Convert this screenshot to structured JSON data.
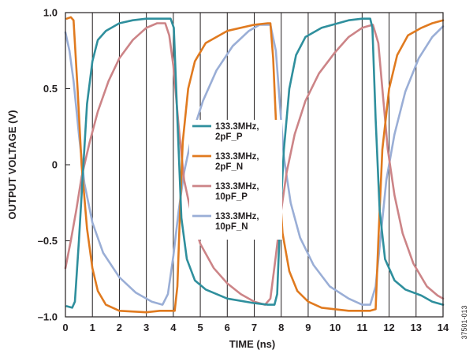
{
  "chart_data": {
    "type": "line",
    "xlabel": "TIME (ns)",
    "ylabel": "OUTPUT VOLTAGE (V)",
    "xlim": [
      0,
      14
    ],
    "ylim": [
      -1.0,
      1.0
    ],
    "x_ticks": [
      "0",
      "1",
      "2",
      "3",
      "4",
      "5",
      "6",
      "7",
      "8",
      "9",
      "10",
      "11",
      "12",
      "13",
      "14"
    ],
    "y_ticks": [
      {
        "value": 1.0,
        "label": "1.0"
      },
      {
        "value": 0.5,
        "label": "0.5"
      },
      {
        "value": 0,
        "label": "0"
      },
      {
        "value": -0.5,
        "label": "–0.5"
      },
      {
        "value": -1.0,
        "label": "–1.0"
      }
    ],
    "grid": "vertical",
    "legend_position": "center",
    "series": [
      {
        "name": "133.3MHz,\n2pF_P",
        "color": "#2f8f9d",
        "points": [
          [
            0.05,
            -0.93
          ],
          [
            0.25,
            -0.94
          ],
          [
            0.35,
            -0.9
          ],
          [
            0.5,
            -0.5
          ],
          [
            0.65,
            -0.05
          ],
          [
            0.8,
            0.4
          ],
          [
            1.0,
            0.68
          ],
          [
            1.2,
            0.82
          ],
          [
            1.5,
            0.88
          ],
          [
            2.0,
            0.93
          ],
          [
            2.5,
            0.95
          ],
          [
            3.0,
            0.96
          ],
          [
            3.5,
            0.96
          ],
          [
            3.9,
            0.96
          ],
          [
            4.02,
            0.9
          ],
          [
            4.15,
            0.3
          ],
          [
            4.3,
            -0.35
          ],
          [
            4.5,
            -0.62
          ],
          [
            4.8,
            -0.76
          ],
          [
            5.2,
            -0.82
          ],
          [
            6.0,
            -0.88
          ],
          [
            7.0,
            -0.91
          ],
          [
            7.5,
            -0.92
          ],
          [
            7.75,
            -0.92
          ],
          [
            7.85,
            -0.85
          ],
          [
            7.95,
            -0.4
          ],
          [
            8.1,
            0.1
          ],
          [
            8.3,
            0.5
          ],
          [
            8.55,
            0.72
          ],
          [
            8.9,
            0.84
          ],
          [
            9.5,
            0.9
          ],
          [
            10.5,
            0.95
          ],
          [
            11.0,
            0.96
          ],
          [
            11.3,
            0.96
          ],
          [
            11.38,
            0.9
          ],
          [
            11.5,
            0.3
          ],
          [
            11.65,
            -0.3
          ],
          [
            11.85,
            -0.62
          ],
          [
            12.2,
            -0.76
          ],
          [
            12.6,
            -0.82
          ],
          [
            13.2,
            -0.86
          ],
          [
            13.6,
            -0.9
          ],
          [
            14.0,
            -0.92
          ]
        ]
      },
      {
        "name": "133.3MHz,\n2pF_N",
        "color": "#e07a1f",
        "points": [
          [
            0.05,
            0.96
          ],
          [
            0.2,
            0.97
          ],
          [
            0.3,
            0.95
          ],
          [
            0.45,
            0.5
          ],
          [
            0.6,
            0.0
          ],
          [
            0.8,
            -0.42
          ],
          [
            1.0,
            -0.68
          ],
          [
            1.2,
            -0.83
          ],
          [
            1.5,
            -0.92
          ],
          [
            2.0,
            -0.96
          ],
          [
            3.0,
            -0.97
          ],
          [
            3.5,
            -0.96
          ],
          [
            4.05,
            -0.96
          ],
          [
            4.15,
            -0.8
          ],
          [
            4.25,
            -0.3
          ],
          [
            4.35,
            0.15
          ],
          [
            4.55,
            0.5
          ],
          [
            4.8,
            0.68
          ],
          [
            5.2,
            0.8
          ],
          [
            6.0,
            0.88
          ],
          [
            7.0,
            0.92
          ],
          [
            7.5,
            0.93
          ],
          [
            7.6,
            0.93
          ],
          [
            7.7,
            0.7
          ],
          [
            7.85,
            0.1
          ],
          [
            8.05,
            -0.45
          ],
          [
            8.3,
            -0.7
          ],
          [
            8.6,
            -0.83
          ],
          [
            9.0,
            -0.9
          ],
          [
            9.5,
            -0.94
          ],
          [
            10.5,
            -0.96
          ],
          [
            11.3,
            -0.96
          ],
          [
            11.5,
            -0.95
          ],
          [
            11.6,
            -0.5
          ],
          [
            11.75,
            0.1
          ],
          [
            12.0,
            0.5
          ],
          [
            12.3,
            0.72
          ],
          [
            12.7,
            0.85
          ],
          [
            13.2,
            0.9
          ],
          [
            13.6,
            0.93
          ],
          [
            14.0,
            0.95
          ]
        ]
      },
      {
        "name": "133.3MHz,\n10pF_P",
        "color": "#cc8487",
        "points": [
          [
            0.0,
            -0.68
          ],
          [
            0.2,
            -0.5
          ],
          [
            0.4,
            -0.3
          ],
          [
            0.6,
            -0.08
          ],
          [
            0.9,
            0.15
          ],
          [
            1.2,
            0.35
          ],
          [
            1.6,
            0.55
          ],
          [
            2.0,
            0.7
          ],
          [
            2.5,
            0.82
          ],
          [
            3.0,
            0.9
          ],
          [
            3.4,
            0.93
          ],
          [
            3.7,
            0.93
          ],
          [
            3.85,
            0.85
          ],
          [
            4.0,
            0.65
          ],
          [
            4.2,
            0.25
          ],
          [
            4.4,
            -0.1
          ],
          [
            4.7,
            -0.35
          ],
          [
            5.0,
            -0.52
          ],
          [
            5.5,
            -0.68
          ],
          [
            6.0,
            -0.78
          ],
          [
            6.5,
            -0.85
          ],
          [
            7.0,
            -0.9
          ],
          [
            7.4,
            -0.92
          ],
          [
            7.6,
            -0.88
          ],
          [
            7.8,
            -0.6
          ],
          [
            8.0,
            -0.3
          ],
          [
            8.2,
            -0.05
          ],
          [
            8.5,
            0.2
          ],
          [
            8.9,
            0.42
          ],
          [
            9.4,
            0.6
          ],
          [
            10.0,
            0.74
          ],
          [
            10.5,
            0.84
          ],
          [
            11.0,
            0.9
          ],
          [
            11.4,
            0.92
          ],
          [
            11.6,
            0.8
          ],
          [
            11.75,
            0.5
          ],
          [
            11.95,
            0.1
          ],
          [
            12.2,
            -0.2
          ],
          [
            12.5,
            -0.45
          ],
          [
            12.9,
            -0.65
          ],
          [
            13.4,
            -0.8
          ],
          [
            13.8,
            -0.86
          ],
          [
            14.0,
            -0.88
          ]
        ]
      },
      {
        "name": "133.3MHz,\n10pF_N",
        "color": "#9aaed6",
        "points": [
          [
            0.0,
            0.87
          ],
          [
            0.15,
            0.75
          ],
          [
            0.3,
            0.55
          ],
          [
            0.5,
            0.2
          ],
          [
            0.7,
            -0.12
          ],
          [
            1.0,
            -0.38
          ],
          [
            1.4,
            -0.58
          ],
          [
            2.0,
            -0.74
          ],
          [
            2.6,
            -0.84
          ],
          [
            3.2,
            -0.9
          ],
          [
            3.6,
            -0.92
          ],
          [
            3.8,
            -0.85
          ],
          [
            4.0,
            -0.6
          ],
          [
            4.2,
            -0.3
          ],
          [
            4.4,
            -0.05
          ],
          [
            4.7,
            0.2
          ],
          [
            5.1,
            0.42
          ],
          [
            5.6,
            0.62
          ],
          [
            6.2,
            0.78
          ],
          [
            6.8,
            0.88
          ],
          [
            7.2,
            0.92
          ],
          [
            7.6,
            0.92
          ],
          [
            7.8,
            0.75
          ],
          [
            7.95,
            0.4
          ],
          [
            8.1,
            0.05
          ],
          [
            8.35,
            -0.25
          ],
          [
            8.7,
            -0.48
          ],
          [
            9.2,
            -0.66
          ],
          [
            9.8,
            -0.8
          ],
          [
            10.5,
            -0.88
          ],
          [
            11.0,
            -0.92
          ],
          [
            11.3,
            -0.92
          ],
          [
            11.5,
            -0.8
          ],
          [
            11.7,
            -0.45
          ],
          [
            11.9,
            -0.1
          ],
          [
            12.2,
            0.2
          ],
          [
            12.6,
            0.48
          ],
          [
            13.1,
            0.7
          ],
          [
            13.6,
            0.84
          ],
          [
            14.0,
            0.91
          ]
        ]
      }
    ]
  },
  "figure_id": "37501-013"
}
